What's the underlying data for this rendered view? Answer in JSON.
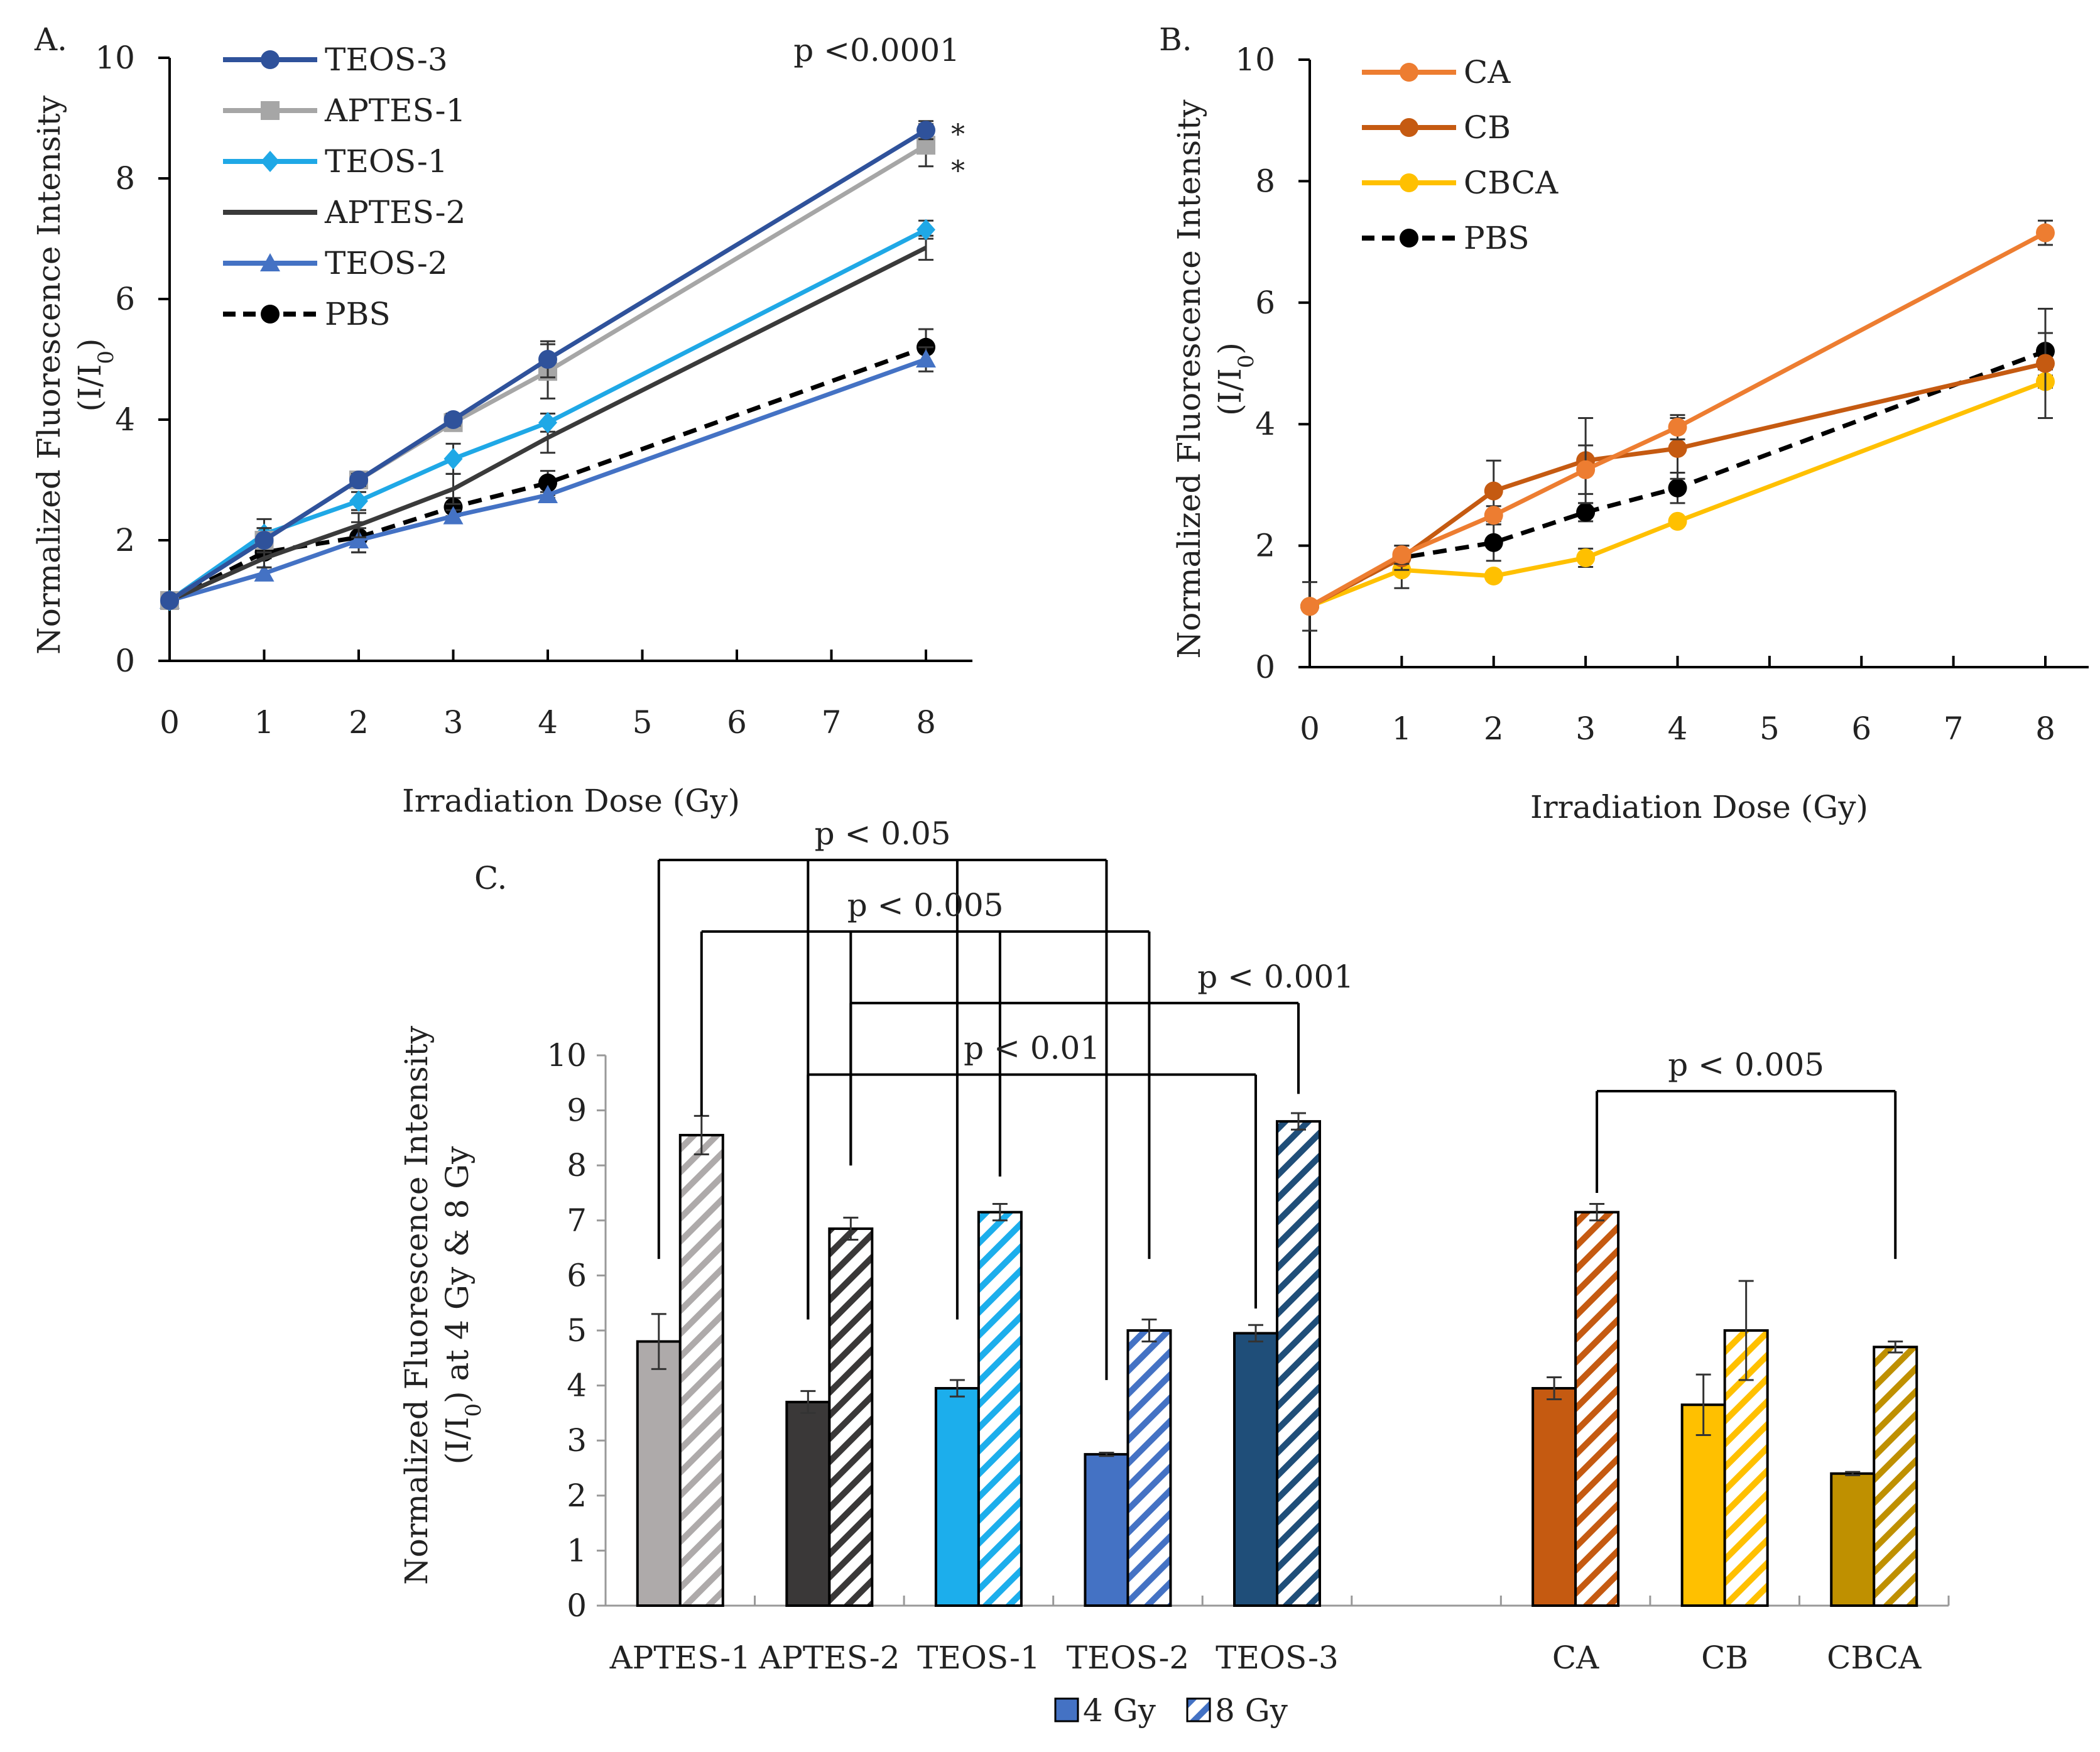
{
  "chart_data": [
    {
      "panel": "A.",
      "type": "line",
      "xlabel": "Irradiation Dose (Gy)",
      "ylabel_line1": "Normalized Fluorescence Intensity",
      "ylabel_line2": "(I/I0)",
      "xlim": [
        0,
        8.5
      ],
      "ylim": [
        0,
        10
      ],
      "xticks": [
        0,
        1,
        2,
        3,
        4,
        5,
        6,
        7,
        8
      ],
      "yticks": [
        0,
        2,
        4,
        6,
        8,
        10
      ],
      "annotation": "p <0.0001",
      "star_marks": [
        "*",
        "*"
      ],
      "x": [
        0,
        1,
        2,
        3,
        4,
        8
      ],
      "series": [
        {
          "name": "TEOS-3",
          "color": "#2f529b",
          "marker": "circle",
          "dash": false,
          "values": [
            1.0,
            2.0,
            3.0,
            4.0,
            5.0,
            8.8
          ],
          "err": [
            0.05,
            0.2,
            0.1,
            0.1,
            0.3,
            0.15
          ]
        },
        {
          "name": "APTES-1",
          "color": "#a6a6a6",
          "marker": "square",
          "dash": false,
          "values": [
            1.0,
            2.0,
            3.0,
            3.95,
            4.8,
            8.55
          ],
          "err": [
            0.05,
            0.2,
            0.1,
            0.1,
            0.45,
            0.35
          ]
        },
        {
          "name": "TEOS-1",
          "color": "#1fa8e6",
          "marker": "diamond",
          "dash": false,
          "values": [
            1.0,
            2.1,
            2.65,
            3.35,
            3.95,
            7.15
          ],
          "err": [
            0.05,
            0.25,
            0.15,
            0.25,
            0.15,
            0.15
          ]
        },
        {
          "name": "APTES-2",
          "color": "#3a3a3a",
          "marker": "none",
          "dash": false,
          "values": [
            1.0,
            1.7,
            2.25,
            2.85,
            3.7,
            6.85
          ],
          "err": [
            0.05,
            0.15,
            0.2,
            0.25,
            0.25,
            0.2
          ]
        },
        {
          "name": "TEOS-2",
          "color": "#4472c4",
          "marker": "triangle",
          "dash": false,
          "values": [
            1.0,
            1.45,
            2.0,
            2.4,
            2.75,
            5.0
          ],
          "err": [
            0.05,
            0.1,
            0.2,
            0.1,
            0.05,
            0.2
          ]
        },
        {
          "name": "PBS",
          "color": "#000000",
          "marker": "circle",
          "dash": true,
          "values": [
            1.0,
            1.8,
            2.05,
            2.55,
            2.95,
            5.2
          ],
          "err": [
            0.05,
            0.1,
            0.25,
            0.15,
            0.2,
            0.3
          ]
        }
      ]
    },
    {
      "panel": "B.",
      "type": "line",
      "xlabel": "Irradiation Dose (Gy)",
      "ylabel_line1": "Normalized Fluorescence Intensity",
      "ylabel_line2": "(I/I0)",
      "xlim": [
        0,
        8.5
      ],
      "ylim": [
        0,
        10
      ],
      "xticks": [
        0,
        1,
        2,
        3,
        4,
        5,
        6,
        7,
        8
      ],
      "yticks": [
        0,
        2,
        4,
        6,
        8,
        10
      ],
      "x": [
        0,
        1,
        2,
        3,
        4,
        8
      ],
      "series": [
        {
          "name": "CA",
          "color": "#ed7d31",
          "marker": "circle",
          "dash": false,
          "values": [
            1.0,
            1.85,
            2.5,
            3.25,
            3.95,
            7.15
          ],
          "err": [
            0.05,
            0.15,
            0.15,
            0.4,
            0.2,
            0.2
          ]
        },
        {
          "name": "CB",
          "color": "#c55a11",
          "marker": "circle",
          "dash": false,
          "values": [
            1.0,
            1.8,
            2.9,
            3.4,
            3.6,
            5.0
          ],
          "err": [
            0.05,
            0.2,
            0.5,
            0.7,
            0.5,
            0.9
          ]
        },
        {
          "name": "CBCA",
          "color": "#ffc000",
          "marker": "circle",
          "dash": false,
          "values": [
            1.0,
            1.6,
            1.5,
            1.8,
            2.4,
            4.7
          ],
          "err": [
            0.05,
            0.3,
            0.05,
            0.15,
            0.05,
            0.1
          ]
        },
        {
          "name": "PBS",
          "color": "#000000",
          "marker": "circle",
          "dash": true,
          "values": [
            1.0,
            1.8,
            2.05,
            2.55,
            2.95,
            5.2
          ],
          "err": [
            0.4,
            0.1,
            0.3,
            0.15,
            0.25,
            0.3
          ]
        }
      ]
    },
    {
      "panel": "C.",
      "type": "bar",
      "ylabel_line1": "Normalized Fluorescence Intensity",
      "ylabel_line2": "(I/I0) at 4 Gy & 8 Gy",
      "ylim": [
        0,
        10
      ],
      "yticks": [
        0,
        1,
        2,
        3,
        4,
        5,
        6,
        7,
        8,
        9,
        10
      ],
      "categories": [
        "APTES-1",
        "APTES-2",
        "TEOS-1",
        "TEOS-2",
        "TEOS-3",
        "",
        "CA",
        "CB",
        "CBCA"
      ],
      "legend": [
        {
          "name": "4 Gy",
          "pattern": "solid"
        },
        {
          "name": "8 Gy",
          "pattern": "hatched"
        }
      ],
      "groups": [
        {
          "name": "APTES-1",
          "color": "#aeaaaa",
          "v4": 4.8,
          "e4": 0.5,
          "v8": 8.55,
          "e8": 0.35
        },
        {
          "name": "APTES-2",
          "color": "#3a3838",
          "v4": 3.7,
          "e4": 0.2,
          "v8": 6.85,
          "e8": 0.2
        },
        {
          "name": "TEOS-1",
          "color": "#1caeec",
          "v4": 3.95,
          "e4": 0.15,
          "v8": 7.15,
          "e8": 0.15
        },
        {
          "name": "TEOS-2",
          "color": "#4472c4",
          "v4": 2.75,
          "e4": 0.03,
          "v8": 5.0,
          "e8": 0.2
        },
        {
          "name": "TEOS-3",
          "color": "#1f4e79",
          "v4": 4.95,
          "e4": 0.15,
          "v8": 8.8,
          "e8": 0.15
        },
        null,
        {
          "name": "CA",
          "color": "#c55a11",
          "v4": 3.95,
          "e4": 0.2,
          "v8": 7.15,
          "e8": 0.15
        },
        {
          "name": "CB",
          "color": "#ffc000",
          "v4": 3.65,
          "e4": 0.55,
          "v8": 5.0,
          "e8": 0.9
        },
        {
          "name": "CBCA",
          "color": "#bf9000",
          "v4": 2.4,
          "e4": 0.03,
          "v8": 4.7,
          "e8": 0.1
        }
      ],
      "significance": [
        {
          "label": "p < 0.05",
          "level": 13.55,
          "drops": [
            [
              0,
              4,
              6.3
            ],
            [
              1,
              4,
              5.2
            ],
            [
              2,
              4,
              5.2
            ],
            [
              3,
              4,
              4.1
            ]
          ]
        },
        {
          "label": "p < 0.005",
          "level": 12.25,
          "drops": [
            [
              0,
              8,
              8.9
            ],
            [
              1,
              8,
              8.0
            ],
            [
              2,
              8,
              7.8
            ],
            [
              3,
              8,
              6.3
            ]
          ]
        },
        {
          "label": "p < 0.001",
          "level": 10.95,
          "drops": [
            [
              1,
              8,
              8.0
            ],
            [
              4,
              8,
              9.3
            ]
          ]
        },
        {
          "label": "p < 0.01",
          "level": 9.65,
          "drops": [
            [
              1,
              4,
              5.2
            ],
            [
              2,
              8,
              7.8
            ],
            [
              4,
              4,
              5.4
            ]
          ]
        },
        {
          "label": "p < 0.005",
          "level": 9.35,
          "drops": [
            [
              6,
              8,
              7.5
            ],
            [
              8,
              8,
              6.3
            ]
          ]
        }
      ]
    }
  ]
}
